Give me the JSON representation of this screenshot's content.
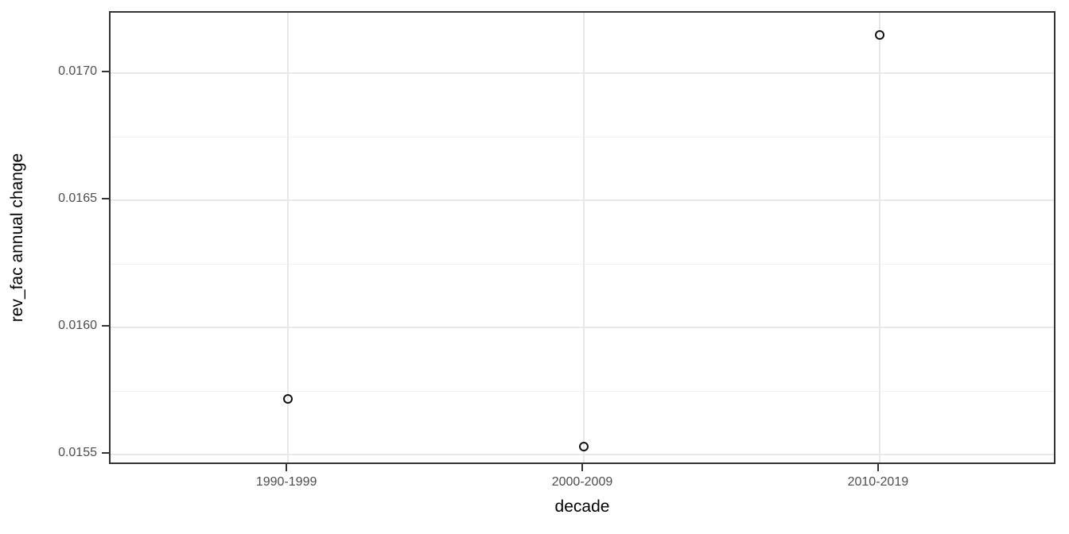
{
  "chart_data": {
    "type": "scatter",
    "title": "",
    "xlabel": "decade",
    "ylabel": "rev_fac annual change",
    "categories": [
      "1990-1999",
      "2000-2009",
      "2010-2019"
    ],
    "series": [
      {
        "name": "rev_fac annual change",
        "values": [
          0.01572,
          0.01553,
          0.01715
        ]
      }
    ],
    "y_ticks": [
      {
        "value": 0.0155,
        "label": "0.0155"
      },
      {
        "value": 0.016,
        "label": "0.0160"
      },
      {
        "value": 0.0165,
        "label": "0.0165"
      },
      {
        "value": 0.017,
        "label": "0.0170"
      }
    ],
    "y_minor_ticks": [
      0.01575,
      0.01625,
      0.01675
    ],
    "ylim": [
      0.0154563,
      0.0172375
    ],
    "grid": "major and minor horizontal, major vertical per category",
    "legend": "none",
    "point_style": "open-circle",
    "colors": {
      "point_stroke": "#111111",
      "grid_major": "#e8e8e8",
      "grid_minor": "#f0f0f0",
      "panel_border": "#333333",
      "tick_label": "#4d4d4d",
      "axis_title": "#000000",
      "background": "#ffffff"
    }
  }
}
